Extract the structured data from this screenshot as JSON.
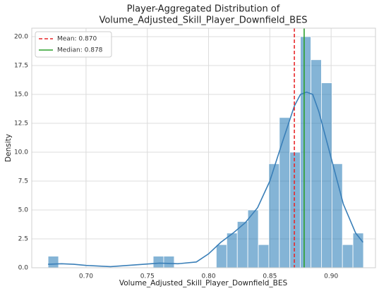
{
  "chart_data": {
    "type": "histogram",
    "title": [
      "Player-Aggregated Distribution of",
      "Volume_Adjusted_Skill_Player_Downfield_BES"
    ],
    "xlabel": "Volume_Adjusted_Skill_Player_Downfield_BES",
    "ylabel": "Density",
    "bins": [
      0.669,
      0.67758,
      0.68616,
      0.69474,
      0.70332,
      0.7119,
      0.72048,
      0.72906,
      0.73764,
      0.74622,
      0.7548,
      0.76338,
      0.77196,
      0.78054,
      0.78912,
      0.7977,
      0.80628,
      0.81486,
      0.82344,
      0.83202,
      0.8406,
      0.84918,
      0.85776,
      0.86634,
      0.87492,
      0.8835,
      0.89208,
      0.90066,
      0.90924,
      0.91782,
      0.9264
    ],
    "values": [
      1.0,
      0,
      0,
      0,
      0,
      0,
      0,
      0,
      0,
      0,
      1.0,
      1.0,
      0,
      0,
      0,
      0,
      2.0,
      3.0,
      4.0,
      5.0,
      2.0,
      9.0,
      13.0,
      10.0,
      20.0,
      18.0,
      16.0,
      9.0,
      2.0,
      3.0
    ],
    "color": "#1f77b4",
    "kde": {
      "x": [
        0.669,
        0.68,
        0.69,
        0.7,
        0.72,
        0.74,
        0.76,
        0.775,
        0.79,
        0.8,
        0.81,
        0.82,
        0.83,
        0.84,
        0.85,
        0.86,
        0.87,
        0.875,
        0.88,
        0.885,
        0.89,
        0.9,
        0.91,
        0.92,
        0.926
      ],
      "y": [
        0.3,
        0.35,
        0.3,
        0.2,
        0.1,
        0.25,
        0.4,
        0.35,
        0.5,
        1.2,
        2.2,
        3.0,
        3.9,
        5.2,
        7.5,
        10.8,
        14.0,
        15.0,
        15.2,
        15.0,
        13.5,
        9.5,
        5.5,
        3.0,
        2.2
      ],
      "color": "#3a7fb8"
    },
    "lines": [
      {
        "name": "Mean: 0.870",
        "value": 0.87,
        "color": "#e8272a",
        "dashed": true
      },
      {
        "name": "Median: 0.878",
        "value": 0.878,
        "color": "#2ca02c",
        "dashed": false
      }
    ],
    "xlim": [
      0.6557,
      0.9362
    ],
    "ylim": [
      0,
      20.73
    ],
    "xticks": [
      {
        "value": 0.7,
        "label": "0.70"
      },
      0.75,
      {
        "value": 0.8,
        "label": "0.80"
      },
      0.85,
      {
        "value": 0.9,
        "label": "0.90"
      }
    ],
    "yticks": [
      {
        "value": 0,
        "label": "0.0"
      },
      2.5,
      {
        "value": 5,
        "label": "5.0"
      },
      7.5,
      {
        "value": 10,
        "label": "10.0"
      },
      12.5,
      {
        "value": 15,
        "label": "15.0"
      },
      17.5,
      {
        "value": 20,
        "label": "20.0"
      }
    ],
    "grid": true,
    "legend": "upper left"
  }
}
